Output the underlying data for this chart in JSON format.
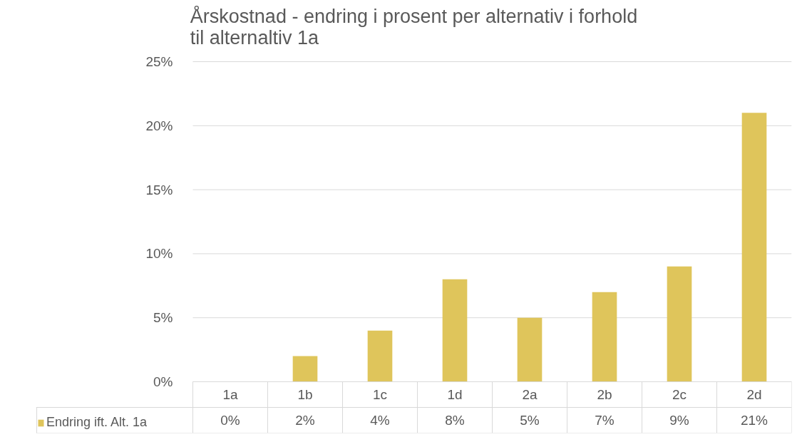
{
  "chart_data": {
    "type": "bar",
    "title": "Årskostnad - endring i prosent per alternativ i forhold\ntil alternaltiv 1a",
    "categories": [
      "1a",
      "1b",
      "1c",
      "1d",
      "2a",
      "2b",
      "2c",
      "2d"
    ],
    "series": [
      {
        "name": "Endring ift. Alt. 1a",
        "color": "#dfc55b",
        "values": [
          0,
          2,
          4,
          8,
          5,
          7,
          9,
          21
        ],
        "value_labels": [
          "0%",
          "2%",
          "4%",
          "8%",
          "5%",
          "7%",
          "9%",
          "21%"
        ]
      }
    ],
    "ylim": [
      0,
      25
    ],
    "yticks": [
      {
        "value": 0,
        "label": "0%"
      },
      {
        "value": 5,
        "label": "5%"
      },
      {
        "value": 10,
        "label": "10%"
      },
      {
        "value": 15,
        "label": "15%"
      },
      {
        "value": 20,
        "label": "20%"
      },
      {
        "value": 25,
        "label": "25%"
      }
    ],
    "grid": "y",
    "legend": "bottom"
  }
}
